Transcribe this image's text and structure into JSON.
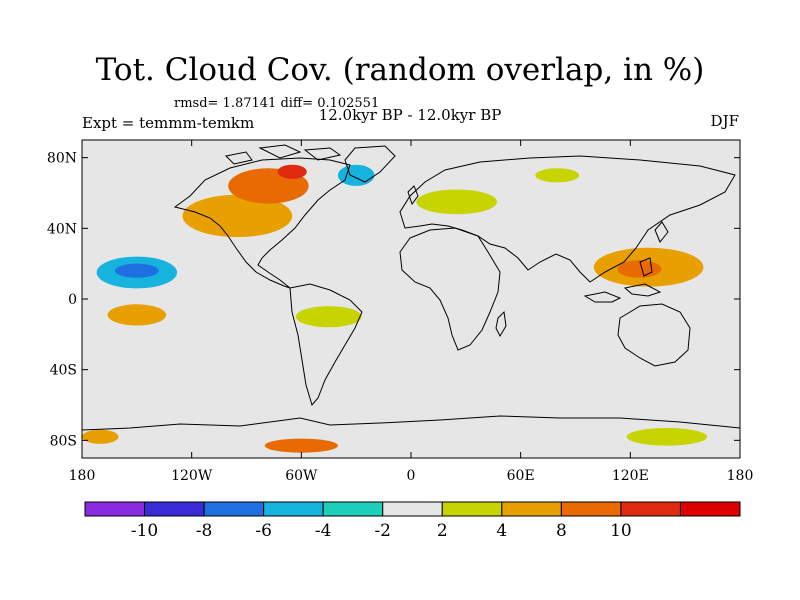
{
  "header": {
    "title": "Tot. Cloud Cov. (random overlap, in %)",
    "stats": "rmsd= 1.87141 diff= 0.102551",
    "period": "12.0kyr BP - 12.0kyr BP",
    "experiment": "Expt = temmm-temkm",
    "season": "DJF"
  },
  "map": {
    "projection": "cylindrical-equidistant",
    "lon_range": [
      -180,
      180
    ],
    "lat_range": [
      -90,
      90
    ],
    "background_color": "#e6e6e6",
    "y_ticks": [
      {
        "lat": 80,
        "label": "80N"
      },
      {
        "lat": 40,
        "label": "40N"
      },
      {
        "lat": 0,
        "label": "0"
      },
      {
        "lat": -40,
        "label": "40S"
      },
      {
        "lat": -80,
        "label": "80S"
      }
    ],
    "x_ticks": [
      {
        "lon": -180,
        "label": "180"
      },
      {
        "lon": -120,
        "label": "120W"
      },
      {
        "lon": -60,
        "label": "60W"
      },
      {
        "lon": 0,
        "label": "0"
      },
      {
        "lon": 60,
        "label": "60E"
      },
      {
        "lon": 120,
        "label": "120E"
      },
      {
        "lon": 180,
        "label": "180"
      }
    ],
    "anomalies": [
      {
        "lon": -150,
        "lat": 15,
        "rx": 22,
        "ry": 9,
        "value": -6
      },
      {
        "lon": -150,
        "lat": 16,
        "rx": 12,
        "ry": 4,
        "value": -8
      },
      {
        "lon": -150,
        "lat": -9,
        "rx": 16,
        "ry": 6,
        "value": 4
      },
      {
        "lon": -95,
        "lat": 47,
        "rx": 30,
        "ry": 12,
        "value": 4
      },
      {
        "lon": -78,
        "lat": 64,
        "rx": 22,
        "ry": 10,
        "value": 8
      },
      {
        "lon": -65,
        "lat": 72,
        "rx": 8,
        "ry": 4,
        "value": 10
      },
      {
        "lon": -30,
        "lat": 70,
        "rx": 10,
        "ry": 6,
        "value": -6
      },
      {
        "lon": 25,
        "lat": 55,
        "rx": 22,
        "ry": 7,
        "value": 2
      },
      {
        "lon": 130,
        "lat": 18,
        "rx": 30,
        "ry": 11,
        "value": 4
      },
      {
        "lon": 125,
        "lat": 17,
        "rx": 12,
        "ry": 5,
        "value": 8
      },
      {
        "lon": 155,
        "lat": 40,
        "rx": 25,
        "ry": 8,
        "value": -2
      },
      {
        "lon": -45,
        "lat": -10,
        "rx": 18,
        "ry": 6,
        "value": 2
      },
      {
        "lon": -60,
        "lat": -83,
        "rx": 20,
        "ry": 4,
        "value": 8
      },
      {
        "lon": 140,
        "lat": -78,
        "rx": 22,
        "ry": 5,
        "value": 2
      },
      {
        "lon": 100,
        "lat": -76,
        "rx": 15,
        "ry": 4,
        "value": -2
      },
      {
        "lon": -170,
        "lat": -78,
        "rx": 10,
        "ry": 4,
        "value": 4
      },
      {
        "lon": -130,
        "lat": 80,
        "rx": 15,
        "ry": 5,
        "value": -2
      },
      {
        "lon": 80,
        "lat": 70,
        "rx": 12,
        "ry": 4,
        "value": 2
      }
    ]
  },
  "colorbar": {
    "colors": [
      "#8a2be2",
      "#3a2bd8",
      "#1e6fe0",
      "#17b3df",
      "#1ecfb9",
      "#e6e6e6",
      "#c8d400",
      "#e8a000",
      "#e86a00",
      "#e02a10",
      "#dd0000"
    ],
    "labels": [
      "-10",
      "-8",
      "-6",
      "-4",
      "-2",
      "2",
      "4",
      "8",
      "10"
    ]
  }
}
